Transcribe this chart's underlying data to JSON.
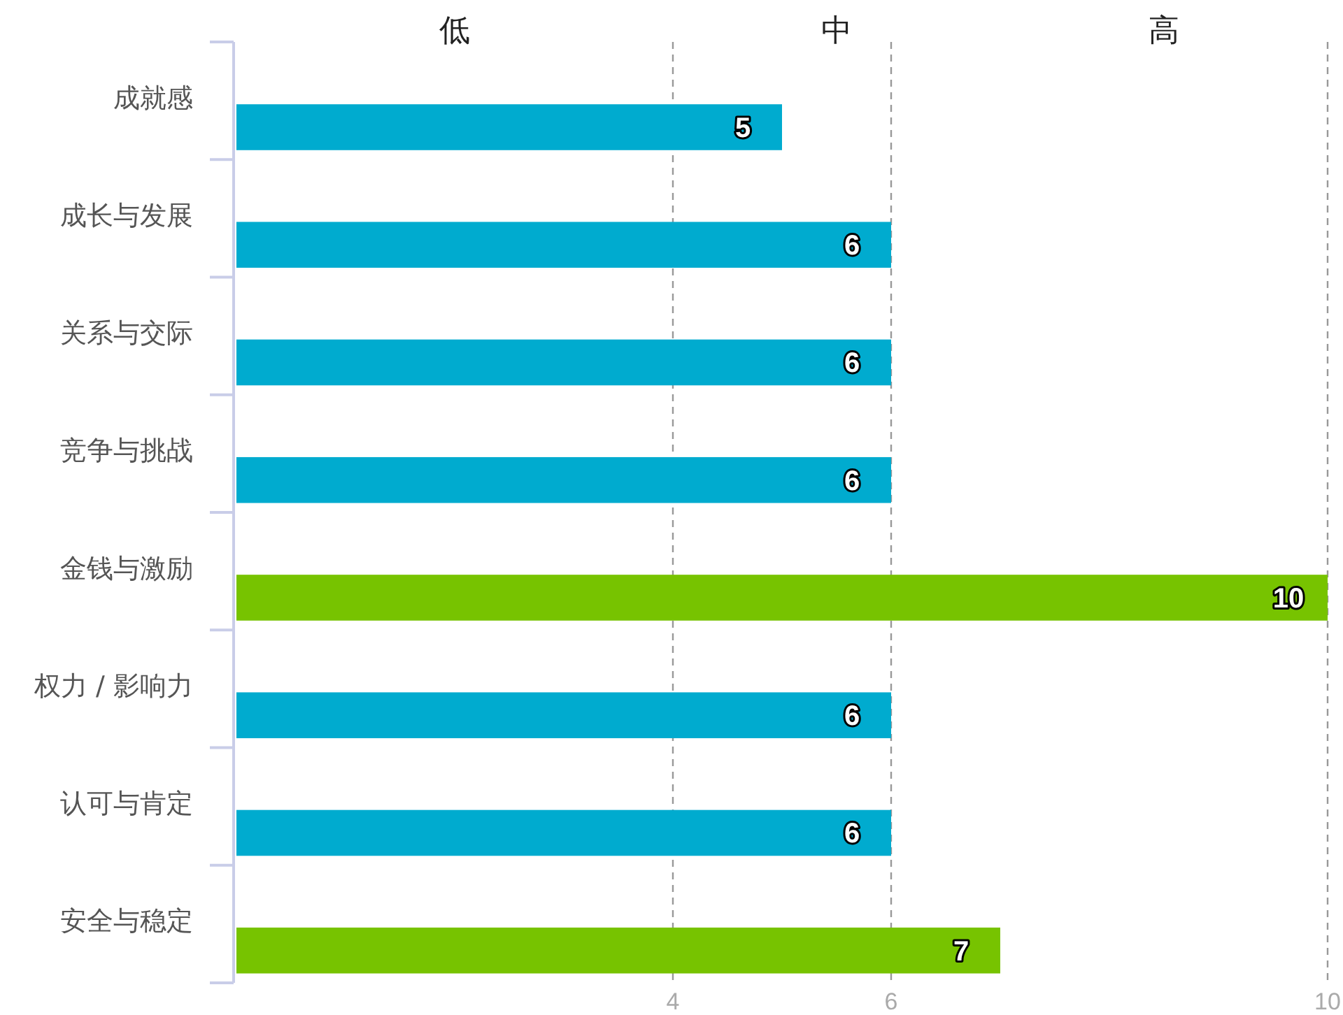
{
  "chart_data": {
    "type": "bar",
    "orientation": "horizontal",
    "categories": [
      "成就感",
      "成长与发展",
      "关系与交际",
      "竞争与挑战",
      "金钱与激励",
      "权力 / 影响力",
      "认可与肯定",
      "安全与稳定"
    ],
    "values": [
      5,
      6,
      6,
      6,
      10,
      6,
      6,
      7
    ],
    "colors": [
      "#00abcf",
      "#00abcf",
      "#00abcf",
      "#00abcf",
      "#77c300",
      "#00abcf",
      "#00abcf",
      "#77c300"
    ],
    "xlim": [
      0,
      10
    ],
    "xticks": [
      4,
      6,
      10
    ],
    "annotations": [
      "低",
      "中",
      "高"
    ],
    "grid": "x",
    "data_labels": true
  }
}
